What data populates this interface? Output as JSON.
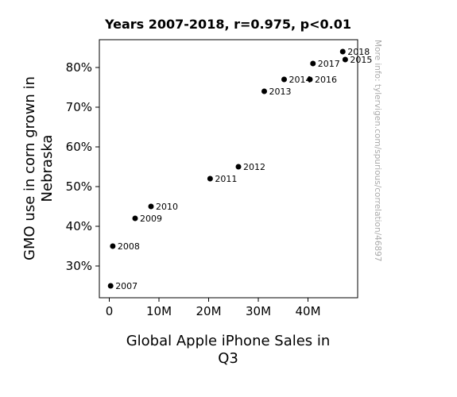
{
  "chart_data": {
    "type": "scatter",
    "title": "Years 2007-2018, r=0.975, p<0.01",
    "xlabel_lines": [
      "Global Apple iPhone Sales in",
      "Q3"
    ],
    "ylabel_lines": [
      "GMO use in corn grown in",
      "Nebraska"
    ],
    "side_note": "More info: tylervigen.com/spurious/correlation/46897",
    "xlim": [
      -2000000,
      50000000
    ],
    "ylim": [
      0.22,
      0.87
    ],
    "xticks": [
      {
        "value": 0,
        "label": "0"
      },
      {
        "value": 10000000,
        "label": "10M"
      },
      {
        "value": 20000000,
        "label": "20M"
      },
      {
        "value": 30000000,
        "label": "30M"
      },
      {
        "value": 40000000,
        "label": "40M"
      }
    ],
    "yticks": [
      {
        "value": 0.3,
        "label": "30%"
      },
      {
        "value": 0.4,
        "label": "40%"
      },
      {
        "value": 0.5,
        "label": "50%"
      },
      {
        "value": 0.6,
        "label": "60%"
      },
      {
        "value": 0.7,
        "label": "70%"
      },
      {
        "value": 0.8,
        "label": "80%"
      }
    ],
    "point_color": "#000000",
    "points": [
      {
        "label": "2007",
        "x": 270000,
        "y": 0.25
      },
      {
        "label": "2008",
        "x": 700000,
        "y": 0.35
      },
      {
        "label": "2009",
        "x": 5200000,
        "y": 0.42
      },
      {
        "label": "2010",
        "x": 8400000,
        "y": 0.45
      },
      {
        "label": "2011",
        "x": 20300000,
        "y": 0.52
      },
      {
        "label": "2012",
        "x": 26000000,
        "y": 0.55
      },
      {
        "label": "2013",
        "x": 31200000,
        "y": 0.74
      },
      {
        "label": "2014",
        "x": 35200000,
        "y": 0.77
      },
      {
        "label": "2015",
        "x": 47500000,
        "y": 0.82
      },
      {
        "label": "2016",
        "x": 40400000,
        "y": 0.77
      },
      {
        "label": "2017",
        "x": 41000000,
        "y": 0.81
      },
      {
        "label": "2018",
        "x": 47000000,
        "y": 0.84
      }
    ]
  }
}
